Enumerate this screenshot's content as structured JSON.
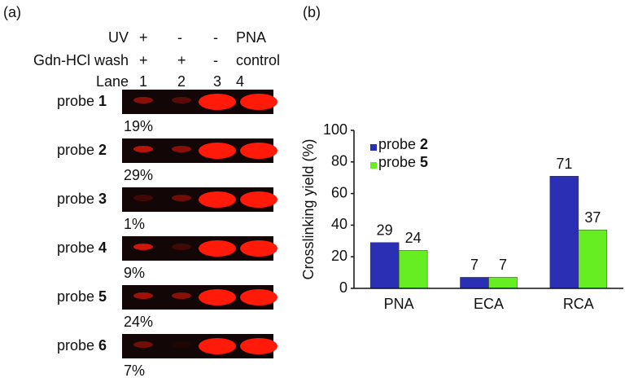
{
  "panel_a": {
    "label": "(a)",
    "header": [
      {
        "label": "UV",
        "lanes": [
          "+",
          "-",
          "-",
          "PNA"
        ]
      },
      {
        "label": "Gdn-HCl wash",
        "lanes": [
          "+",
          "+",
          "-",
          "control"
        ]
      },
      {
        "label": "Lane",
        "lanes": [
          "1",
          "2",
          "3",
          "4"
        ]
      }
    ],
    "rows": [
      {
        "label": "probe",
        "number": "1",
        "yield": "19%"
      },
      {
        "label": "probe",
        "number": "2",
        "yield": "29%"
      },
      {
        "label": "probe",
        "number": "3",
        "yield": "1%"
      },
      {
        "label": "probe",
        "number": "4",
        "yield": "9%"
      },
      {
        "label": "probe",
        "number": "5",
        "yield": "24%"
      },
      {
        "label": "probe",
        "number": "6",
        "yield": "7%"
      }
    ]
  },
  "chart_data": {
    "type": "bar",
    "panel_label": "(b)",
    "ylabel": "Crosslinking yield (%)",
    "categories": [
      "PNA",
      "ECA",
      "RCA"
    ],
    "series": [
      {
        "name": "probe 2",
        "color": "#2b2fb3",
        "values": [
          29,
          7,
          71
        ]
      },
      {
        "name": "probe 5",
        "color": "#66ee22",
        "values": [
          24,
          7,
          37
        ]
      }
    ],
    "ylim": [
      0,
      100
    ],
    "yticks": [
      0,
      20,
      40,
      60,
      80,
      100
    ],
    "grid": false,
    "legend": "upper left"
  }
}
